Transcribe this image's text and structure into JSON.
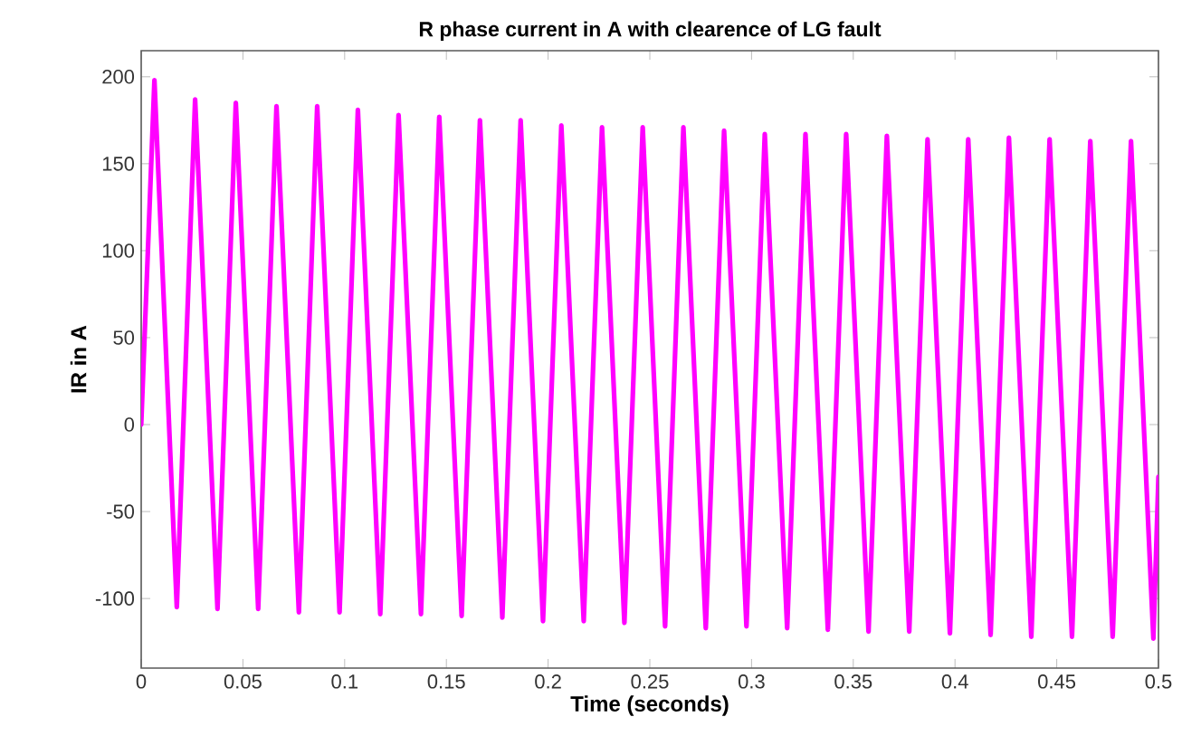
{
  "chart_data": {
    "type": "line",
    "title": "R phase current in A with clearence of LG fault",
    "xlabel": "Time (seconds)",
    "ylabel": "IR in A",
    "xlim": [
      0,
      0.5
    ],
    "xticks": [
      0,
      0.05,
      0.1,
      0.15,
      0.2,
      0.25,
      0.3,
      0.35,
      0.4,
      0.45,
      0.5
    ],
    "ylim": [
      -140,
      215
    ],
    "yticks": [
      -100,
      -50,
      0,
      50,
      100,
      150,
      200
    ],
    "grid": false,
    "marker": "none",
    "line_style": "solid",
    "series": [
      {
        "color": "#ff00ff",
        "x": [
          0,
          0.0065,
          0.0175,
          0.0265,
          0.0375,
          0.0465,
          0.0575,
          0.0665,
          0.0775,
          0.0865,
          0.0975,
          0.1065,
          0.1175,
          0.1265,
          0.1375,
          0.1465,
          0.1575,
          0.1665,
          0.1775,
          0.1865,
          0.1975,
          0.2065,
          0.2175,
          0.2265,
          0.2375,
          0.2465,
          0.2575,
          0.2665,
          0.2775,
          0.2865,
          0.2975,
          0.3065,
          0.3175,
          0.3265,
          0.3375,
          0.3465,
          0.3575,
          0.3665,
          0.3775,
          0.3865,
          0.3975,
          0.4065,
          0.4175,
          0.4265,
          0.4375,
          0.4465,
          0.4575,
          0.4665,
          0.4775,
          0.4865,
          0.4975,
          0.5
        ],
        "values": [
          0,
          198,
          -105,
          187,
          -106,
          185,
          -106,
          183,
          -108,
          183,
          -108,
          181,
          -109,
          178,
          -109,
          177,
          -110,
          175,
          -111,
          175,
          -113,
          172,
          -113,
          171,
          -114,
          171,
          -116,
          171,
          -117,
          169,
          -116,
          167,
          -117,
          167,
          -118,
          167,
          -119,
          166,
          -119,
          164,
          -120,
          164,
          -121,
          165,
          -122,
          164,
          -122,
          163,
          -122,
          163,
          -123,
          -30
        ]
      }
    ]
  }
}
